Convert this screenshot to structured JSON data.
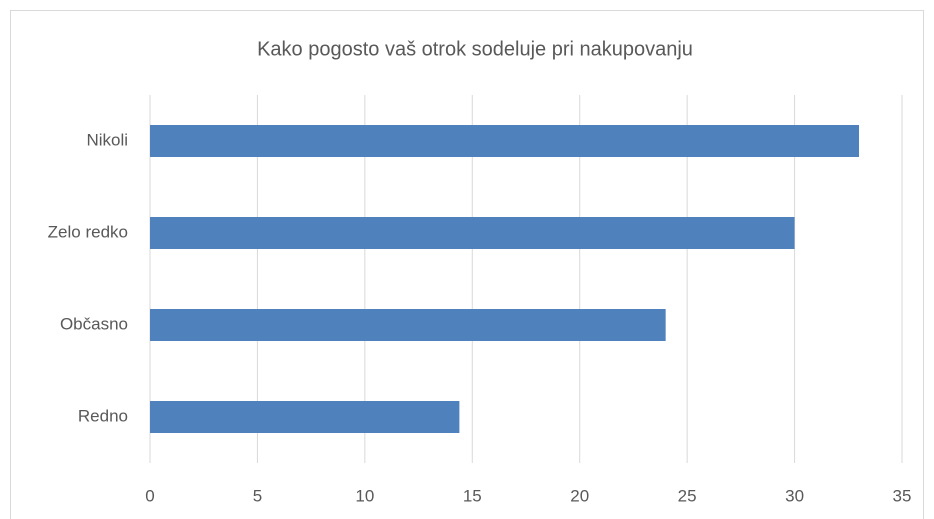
{
  "chart_data": {
    "type": "bar",
    "orientation": "horizontal",
    "title": "Kako pogosto vaš otrok sodeluje pri nakupovanju",
    "categories": [
      "Nikoli",
      "Zelo redko",
      "Občasno",
      "Redno"
    ],
    "values": [
      33,
      30,
      24,
      14.4
    ],
    "color": "#4f81bd",
    "xlim": [
      0,
      35
    ],
    "xticks": [
      0,
      5,
      10,
      15,
      20,
      25,
      30,
      35
    ],
    "grid": true
  }
}
